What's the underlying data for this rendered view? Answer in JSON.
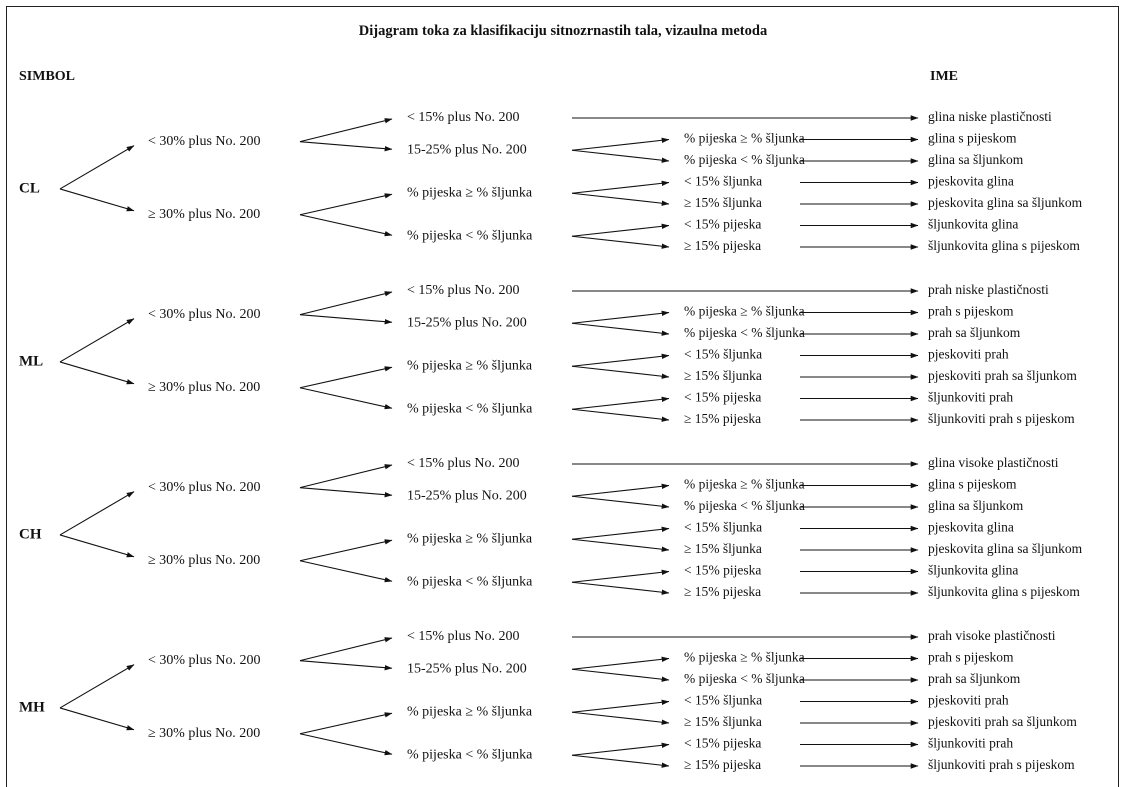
{
  "title": "Dijagram toka za klasifikaciju sitnozrnastih tala, vizaulna metoda",
  "header": {
    "left": "SIMBOL",
    "right": "IME"
  },
  "groups": [
    {
      "symbol": "CL",
      "l1": [
        {
          "label": "< 30% plus No. 200",
          "l2": [
            {
              "label": "< 15% plus No. 200",
              "result": "glina niske plastičnosti"
            },
            {
              "label": "15-25% plus No. 200",
              "l3": [
                {
                  "label": "% pijeska ≥ % šljunka",
                  "result": "glina s pijeskom"
                },
                {
                  "label": "% pijeska < % šljunka",
                  "result": "glina sa šljunkom"
                }
              ]
            }
          ]
        },
        {
          "label": "≥ 30% plus No. 200",
          "l2": [
            {
              "label": "% pijeska ≥ % šljunka",
              "l3": [
                {
                  "label": "< 15% šljunka",
                  "result": "pjeskovita glina"
                },
                {
                  "label": "≥ 15% šljunka",
                  "result": "pjeskovita glina sa šljunkom"
                }
              ]
            },
            {
              "label": "% pijeska < % šljunka",
              "l3": [
                {
                  "label": "< 15% pijeska",
                  "result": "šljunkovita glina"
                },
                {
                  "label": "≥ 15% pijeska",
                  "result": "šljunkovita glina s pijeskom"
                }
              ]
            }
          ]
        }
      ]
    },
    {
      "symbol": "ML",
      "l1": [
        {
          "label": "< 30% plus No. 200",
          "l2": [
            {
              "label": "< 15% plus No. 200",
              "result": "prah niske plastičnosti"
            },
            {
              "label": "15-25% plus No. 200",
              "l3": [
                {
                  "label": "% pijeska ≥ % šljunka",
                  "result": "prah s pijeskom"
                },
                {
                  "label": "% pijeska < % šljunka",
                  "result": "prah sa šljunkom"
                }
              ]
            }
          ]
        },
        {
          "label": "≥ 30% plus No. 200",
          "l2": [
            {
              "label": "% pijeska ≥ % šljunka",
              "l3": [
                {
                  "label": "< 15% šljunka",
                  "result": "pjeskoviti prah"
                },
                {
                  "label": "≥ 15% šljunka",
                  "result": "pjeskoviti prah sa šljunkom"
                }
              ]
            },
            {
              "label": "% pijeska < % šljunka",
              "l3": [
                {
                  "label": "< 15% pijeska",
                  "result": "šljunkoviti prah"
                },
                {
                  "label": "≥ 15% pijeska",
                  "result": "šljunkoviti prah s pijeskom"
                }
              ]
            }
          ]
        }
      ]
    },
    {
      "symbol": "CH",
      "l1": [
        {
          "label": "< 30% plus No. 200",
          "l2": [
            {
              "label": "< 15% plus No. 200",
              "result": "glina visoke plastičnosti"
            },
            {
              "label": "15-25% plus No. 200",
              "l3": [
                {
                  "label": "% pijeska ≥ % šljunka",
                  "result": "glina s pijeskom"
                },
                {
                  "label": "% pijeska < % šljunka",
                  "result": "glina sa šljunkom"
                }
              ]
            }
          ]
        },
        {
          "label": "≥ 30% plus No. 200",
          "l2": [
            {
              "label": "% pijeska ≥ % šljunka",
              "l3": [
                {
                  "label": "< 15% šljunka",
                  "result": "pjeskovita glina"
                },
                {
                  "label": "≥ 15% šljunka",
                  "result": "pjeskovita glina sa šljunkom"
                }
              ]
            },
            {
              "label": "% pijeska < % šljunka",
              "l3": [
                {
                  "label": "< 15% pijeska",
                  "result": "šljunkovita glina"
                },
                {
                  "label": "≥ 15% pijeska",
                  "result": "šljunkovita glina s pijeskom"
                }
              ]
            }
          ]
        }
      ]
    },
    {
      "symbol": "MH",
      "l1": [
        {
          "label": "< 30% plus No. 200",
          "l2": [
            {
              "label": "< 15% plus No. 200",
              "result": "prah visoke plastičnosti"
            },
            {
              "label": "15-25% plus No. 200",
              "l3": [
                {
                  "label": "% pijeska ≥ % šljunka",
                  "result": "prah s pijeskom"
                },
                {
                  "label": "% pijeska < % šljunka",
                  "result": "prah sa šljunkom"
                }
              ]
            }
          ]
        },
        {
          "label": "≥ 30% plus No. 200",
          "l2": [
            {
              "label": "% pijeska ≥ % šljunka",
              "l3": [
                {
                  "label": "< 15% šljunka",
                  "result": "pjeskoviti prah"
                },
                {
                  "label": "≥ 15% šljunka",
                  "result": "pjeskoviti prah sa šljunkom"
                }
              ]
            },
            {
              "label": "% pijeska < % šljunka",
              "l3": [
                {
                  "label": "< 15% pijeska",
                  "result": "šljunkoviti prah"
                },
                {
                  "label": "≥ 15% pijeska",
                  "result": "šljunkoviti prah s pijeskom"
                }
              ]
            }
          ]
        }
      ]
    }
  ]
}
